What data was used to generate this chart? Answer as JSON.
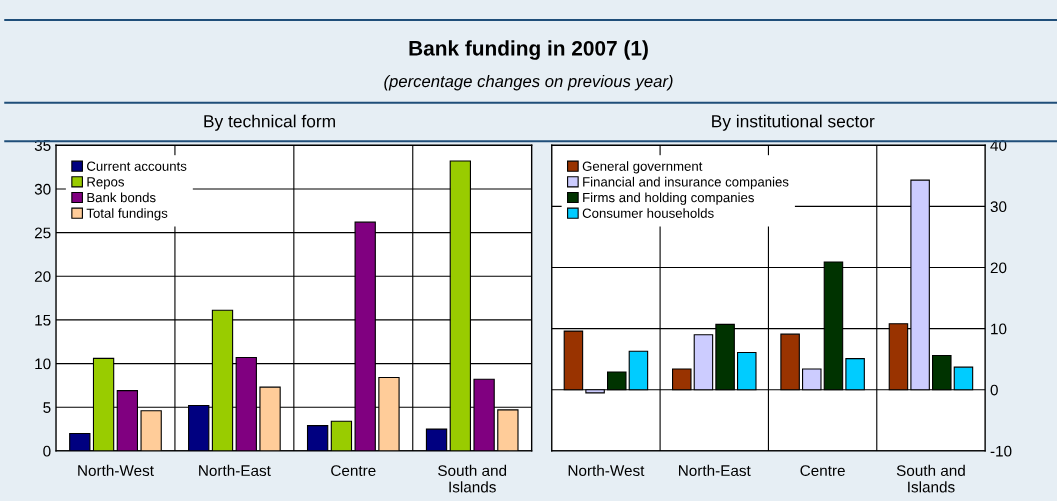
{
  "chart_data": [
    {
      "type": "bar",
      "title": "Bank funding in 2007 (1)",
      "subtitle": "By technical form",
      "annotations": [
        "(percentage changes on previous year)"
      ],
      "categories": [
        "North-West",
        "North-East",
        "Centre",
        "South and\nIslands"
      ],
      "series": [
        {
          "name": "Current accounts",
          "color": "#000080",
          "values": [
            2.0,
            5.2,
            2.9,
            2.5
          ]
        },
        {
          "name": "Repos",
          "color": "#99cc00",
          "values": [
            10.6,
            16.1,
            3.4,
            33.2
          ]
        },
        {
          "name": "Bank bonds",
          "color": "#800080",
          "values": [
            6.9,
            10.7,
            26.2,
            8.2
          ]
        },
        {
          "name": "Total fundings",
          "color": "#ffcc99",
          "values": [
            4.6,
            7.3,
            8.4,
            4.7
          ]
        }
      ],
      "ylim": [
        0,
        35
      ],
      "yticks": [
        0,
        5,
        10,
        15,
        20,
        25,
        30,
        35
      ],
      "grid": true,
      "legend": "top left"
    },
    {
      "type": "bar",
      "subtitle": "By institutional sector",
      "categories": [
        "North-West",
        "North-East",
        "Centre",
        "South and\nIslands"
      ],
      "series": [
        {
          "name": "General government",
          "color": "#993300",
          "values": [
            9.6,
            3.4,
            9.1,
            10.8
          ]
        },
        {
          "name": "Financial and insurance companies",
          "color": "#ccccff",
          "values": [
            -0.5,
            9.0,
            3.4,
            34.3
          ]
        },
        {
          "name": "Firms and holding companies",
          "color": "#003300",
          "values": [
            2.9,
            10.7,
            20.9,
            5.6
          ]
        },
        {
          "name": "Consumer households",
          "color": "#00ccff",
          "values": [
            6.3,
            6.1,
            5.1,
            3.7
          ]
        }
      ],
      "ylim": [
        -10,
        40
      ],
      "yticks": [
        -10,
        0,
        10,
        20,
        30,
        40
      ],
      "grid": true,
      "legend": "top left"
    }
  ]
}
